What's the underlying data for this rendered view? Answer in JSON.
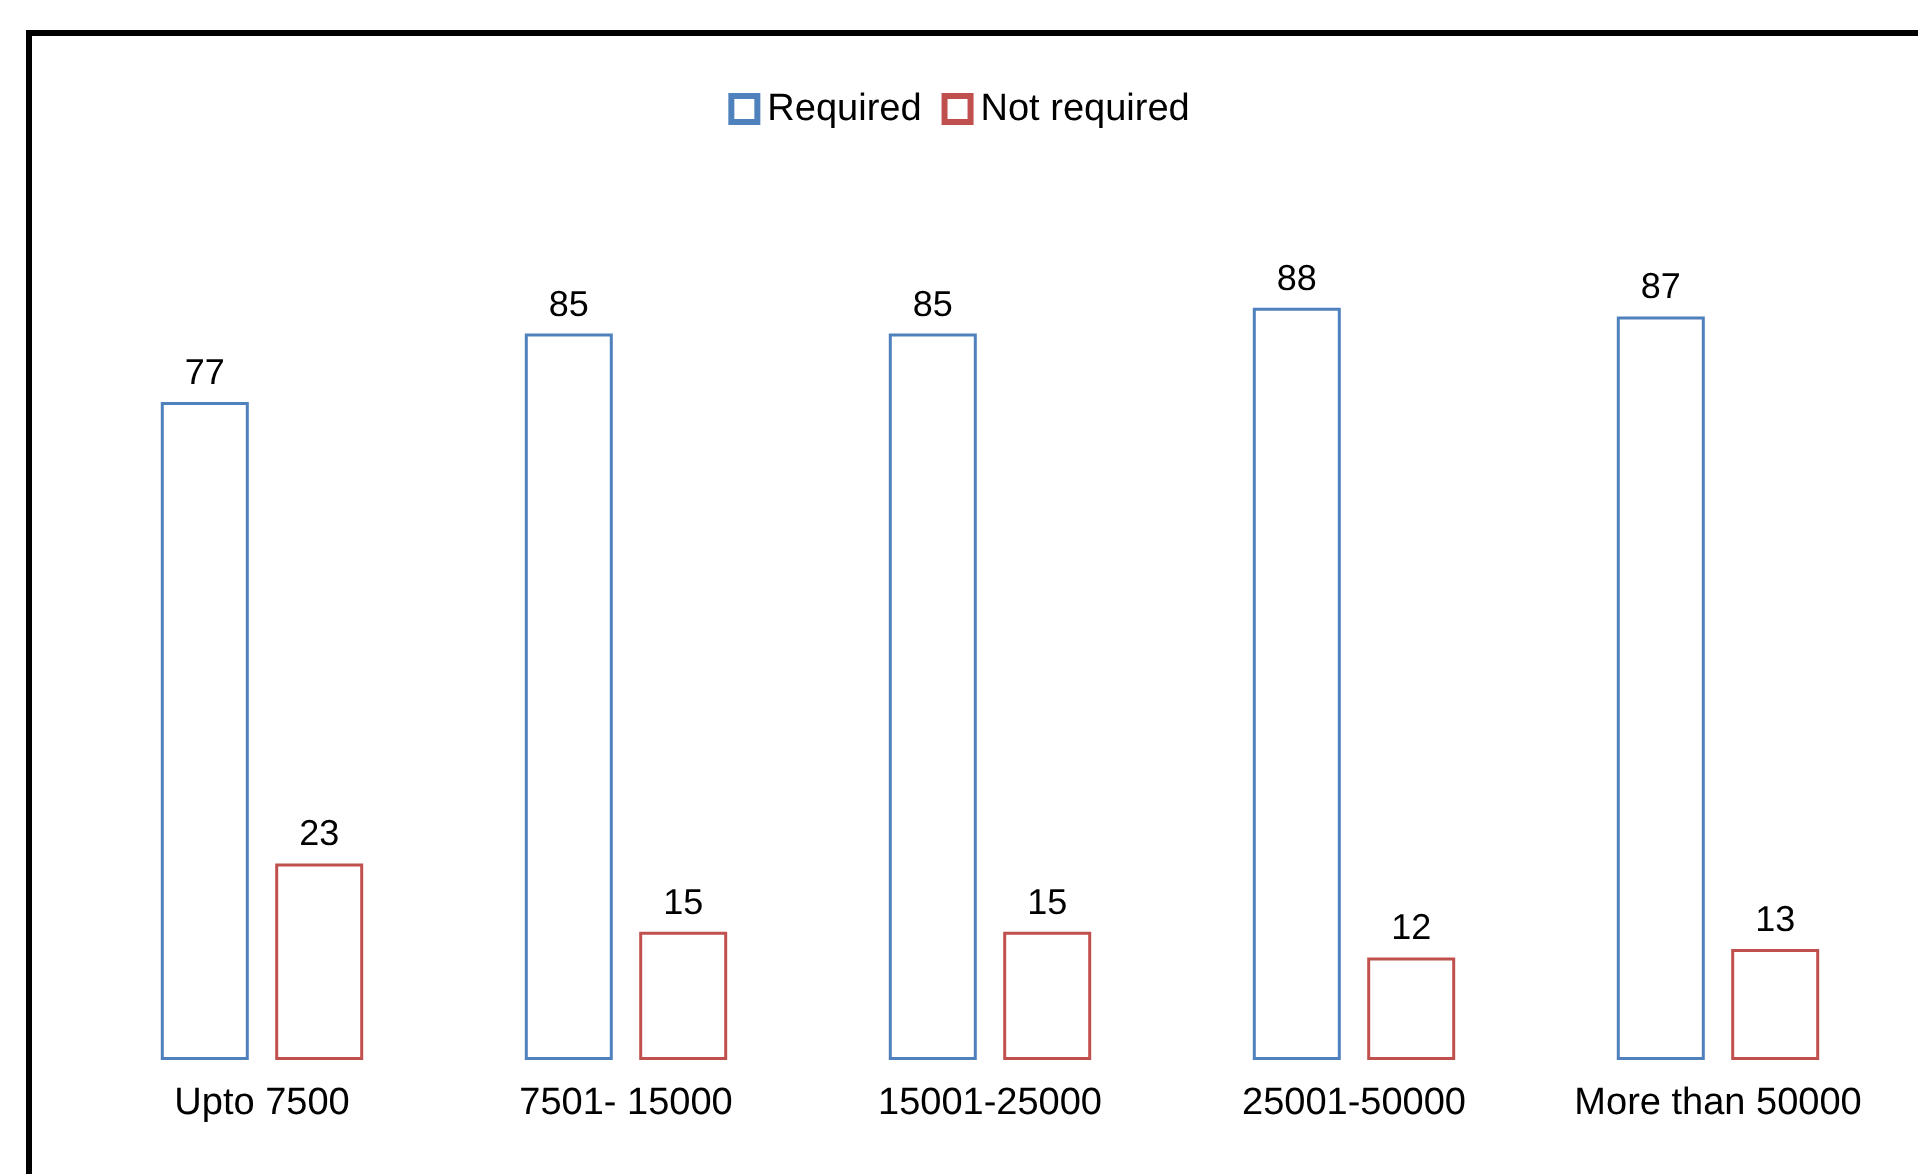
{
  "chart_data": {
    "type": "bar",
    "categories": [
      "Upto 7500",
      "7501- 15000",
      "15001-25000",
      "25001-50000",
      "More than 50000"
    ],
    "series": [
      {
        "name": "Required",
        "color": "#4f81bd",
        "values": [
          77,
          85,
          85,
          88,
          87
        ]
      },
      {
        "name": "Not required",
        "color": "#c0504d",
        "values": [
          23,
          15,
          15,
          12,
          13
        ]
      }
    ],
    "data_labels": true,
    "legend": "top"
  }
}
